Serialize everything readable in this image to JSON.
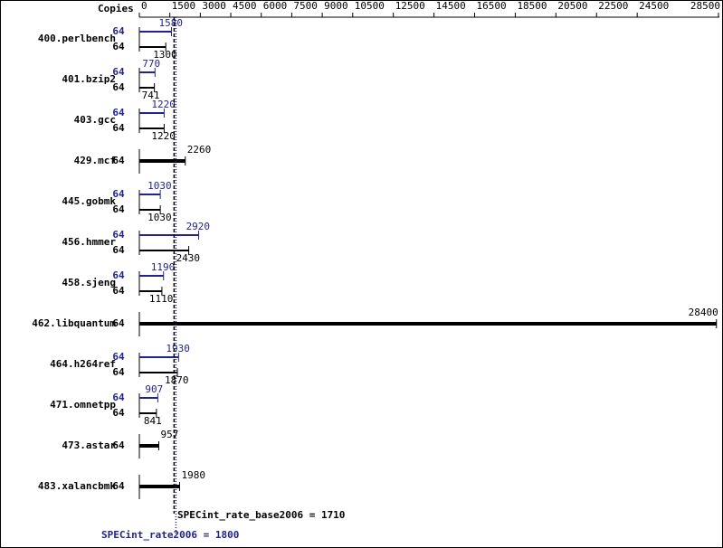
{
  "chart_data": {
    "type": "bar",
    "axis_title": "Copies",
    "categories": [
      "400.perlbench",
      "401.bzip2",
      "403.gcc",
      "429.mcf",
      "445.gobmk",
      "456.hmmer",
      "458.sjeng",
      "462.libquantum",
      "464.h264ref",
      "471.omnetpp",
      "473.astar",
      "483.xalancbmk"
    ],
    "series": [
      {
        "color": "#23238e",
        "values": [
          1580,
          770,
          1220,
          null,
          1030,
          2920,
          1190,
          null,
          1930,
          907,
          null,
          null
        ],
        "copies": [
          64,
          64,
          64,
          null,
          64,
          64,
          64,
          null,
          64,
          64,
          null,
          null
        ]
      },
      {
        "color": "#000000",
        "values": [
          1300,
          741,
          1220,
          2260,
          1030,
          2430,
          1110,
          28400,
          1870,
          841,
          957,
          1980
        ],
        "copies": [
          64,
          64,
          64,
          64,
          64,
          64,
          64,
          64,
          64,
          64,
          64,
          64
        ]
      }
    ],
    "xlim": [
      0,
      28500
    ],
    "xticks": [
      0,
      1500,
      3000,
      4500,
      6000,
      7500,
      9000,
      10500,
      12500,
      14500,
      16500,
      18500,
      20500,
      22500,
      24500,
      28500
    ],
    "reference_lines": [
      {
        "text": "SPECint_rate_base2006 = 1710",
        "value": 1710,
        "color": "#000000"
      },
      {
        "text": "SPECint_rate2006 = 1800",
        "value": 1800,
        "color": "#23238e"
      }
    ]
  }
}
